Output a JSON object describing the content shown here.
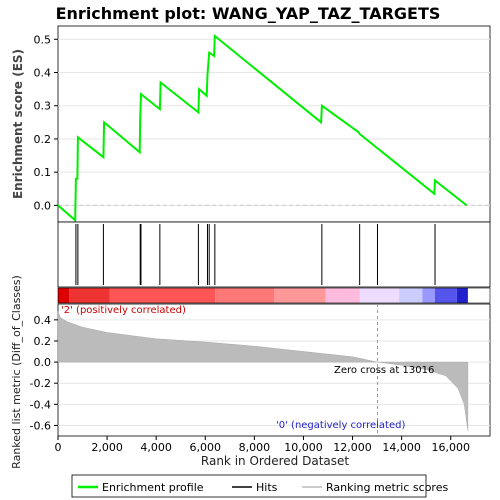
{
  "chart_data": [
    {
      "type": "line",
      "title": "Enrichment plot: WANG_YAP_TAZ_TARGETS",
      "ylabel": "Enrichment score (ES)",
      "ylim": [
        -0.05,
        0.54
      ],
      "yticks": [
        "0.0",
        "0.1",
        "0.2",
        "0.3",
        "0.4",
        "0.5"
      ],
      "xlim": [
        0,
        17600
      ],
      "series": [
        {
          "name": "Enrichment profile",
          "color": "#00ee00",
          "points": [
            [
              0,
              0.0
            ],
            [
              700,
              -0.045
            ],
            [
              730,
              0.08
            ],
            [
              790,
              0.08
            ],
            [
              810,
              0.205
            ],
            [
              1850,
              0.145
            ],
            [
              1880,
              0.25
            ],
            [
              3330,
              0.16
            ],
            [
              3350,
              0.26
            ],
            [
              3380,
              0.335
            ],
            [
              4150,
              0.29
            ],
            [
              4180,
              0.37
            ],
            [
              5720,
              0.28
            ],
            [
              5750,
              0.35
            ],
            [
              6060,
              0.33
            ],
            [
              6090,
              0.395
            ],
            [
              6160,
              0.46
            ],
            [
              6360,
              0.45
            ],
            [
              6390,
              0.51
            ],
            [
              10720,
              0.25
            ],
            [
              10750,
              0.3
            ],
            [
              12250,
              0.22
            ],
            [
              12290,
              0.215
            ],
            [
              15330,
              0.035
            ],
            [
              15360,
              0.075
            ],
            [
              16650,
              0.0
            ]
          ]
        }
      ]
    },
    {
      "type": "rug",
      "series": [
        {
          "name": "Hits",
          "color": "#000000",
          "x": [
            730,
            810,
            1850,
            3350,
            3380,
            4150,
            5720,
            6090,
            6160,
            6390,
            10750,
            12290,
            13016,
            15360
          ]
        }
      ]
    },
    {
      "type": "heatmap",
      "colors": [
        "#dd0000",
        "#ee3333",
        "#ff5555",
        "#ff7777",
        "#ff9999",
        "#ffbbdd",
        "#eeddff",
        "#ccccff",
        "#9999ff",
        "#5555ee",
        "#2222cc"
      ],
      "breaks": [
        0,
        450,
        2100,
        6400,
        8800,
        10900,
        12300,
        13900,
        14850,
        15350,
        16250,
        16700
      ]
    },
    {
      "type": "area",
      "xlabel": "Rank in Ordered Dataset",
      "ylabel": "Ranked list metric (Diff_of_Classes)",
      "ylim": [
        -0.7,
        0.55
      ],
      "yticks": [
        "0.4",
        "0.2",
        "0.0",
        "-0.2",
        "-0.4",
        "-0.6"
      ],
      "xticks": [
        "0",
        "2,000",
        "4,000",
        "6,000",
        "8,000",
        "10,000",
        "12,000",
        "14,000",
        "16,000"
      ],
      "series": [
        {
          "name": "Ranking metric scores",
          "color": "#bbbbbb",
          "points": [
            [
              0,
              0.48
            ],
            [
              100,
              0.42
            ],
            [
              400,
              0.38
            ],
            [
              1000,
              0.33
            ],
            [
              2000,
              0.28
            ],
            [
              4000,
              0.22
            ],
            [
              6000,
              0.19
            ],
            [
              8000,
              0.15
            ],
            [
              10000,
              0.1
            ],
            [
              12000,
              0.05
            ],
            [
              13016,
              0.0
            ],
            [
              14000,
              -0.03
            ],
            [
              15000,
              -0.07
            ],
            [
              15800,
              -0.13
            ],
            [
              16300,
              -0.25
            ],
            [
              16550,
              -0.4
            ],
            [
              16700,
              -0.65
            ]
          ]
        }
      ],
      "annotations": [
        {
          "text": "'2' (positively correlated)",
          "color": "#cc0000"
        },
        {
          "text": "Zero cross at 13016",
          "color": "#000000",
          "x": 13016
        },
        {
          "text": "'0' (negatively correlated)",
          "color": "#2222cc"
        }
      ]
    }
  ],
  "legend": [
    {
      "label": "Enrichment profile",
      "color": "#00ee00",
      "kind": "line"
    },
    {
      "label": "Hits",
      "color": "#000000",
      "kind": "line"
    },
    {
      "label": "Ranking metric scores",
      "color": "#bbbbbb",
      "kind": "line"
    }
  ]
}
